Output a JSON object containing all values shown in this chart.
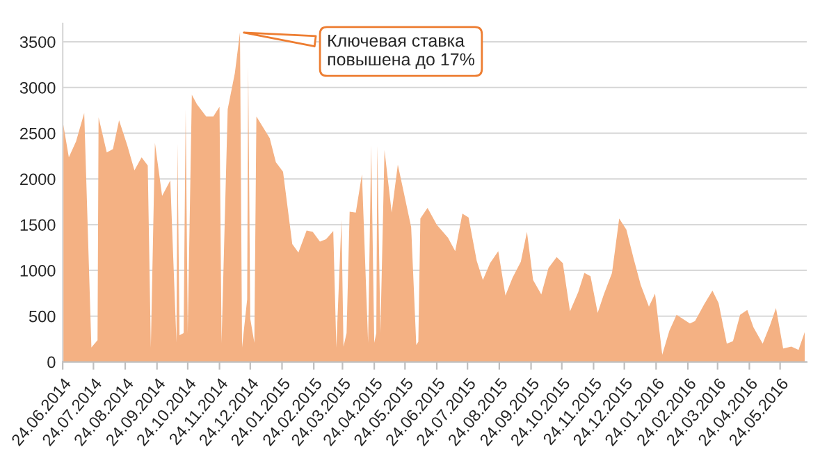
{
  "chart_data": {
    "type": "area",
    "x": [
      "2014-06-24",
      "2014-06-30",
      "2014-07-07",
      "2014-07-15",
      "2014-07-22",
      "2014-07-28",
      "2014-07-29",
      "2014-08-06",
      "2014-08-12",
      "2014-08-18",
      "2014-08-26",
      "2014-09-02",
      "2014-09-09",
      "2014-09-15",
      "2014-09-18",
      "2014-09-22",
      "2014-09-29",
      "2014-10-07",
      "2014-10-13",
      "2014-10-14",
      "2014-10-16",
      "2014-10-20",
      "2014-10-22",
      "2014-10-24",
      "2014-10-28",
      "2014-11-02",
      "2014-11-11",
      "2014-11-18",
      "2014-11-24",
      "2014-11-26",
      "2014-12-02",
      "2014-12-09",
      "2014-12-14",
      "2014-12-16",
      "2014-12-21",
      "2014-12-22",
      "2014-12-24",
      "2014-12-28",
      "2014-12-30",
      "2015-01-12",
      "2015-01-18",
      "2015-01-25",
      "2015-02-03",
      "2015-02-09",
      "2015-02-17",
      "2015-02-23",
      "2015-03-02",
      "2015-03-08",
      "2015-03-15",
      "2015-03-18",
      "2015-03-23",
      "2015-03-25",
      "2015-03-28",
      "2015-03-31",
      "2015-04-06",
      "2015-04-12",
      "2015-04-18",
      "2015-04-21",
      "2015-04-24",
      "2015-04-26",
      "2015-04-27",
      "2015-04-30",
      "2015-05-04",
      "2015-05-11",
      "2015-05-17",
      "2015-05-30",
      "2015-06-04",
      "2015-06-06",
      "2015-06-08",
      "2015-06-15",
      "2015-06-24",
      "2015-07-05",
      "2015-07-12",
      "2015-07-19",
      "2015-07-25",
      "2015-08-02",
      "2015-08-08",
      "2015-08-15",
      "2015-08-23",
      "2015-08-30",
      "2015-09-06",
      "2015-09-14",
      "2015-09-20",
      "2015-09-26",
      "2015-10-04",
      "2015-10-11",
      "2015-10-19",
      "2015-10-25",
      "2015-11-01",
      "2015-11-09",
      "2015-11-15",
      "2015-11-21",
      "2015-11-28",
      "2015-12-04",
      "2015-12-12",
      "2015-12-19",
      "2015-12-26",
      "2016-01-02",
      "2016-01-09",
      "2016-01-17",
      "2016-01-23",
      "2016-01-30",
      "2016-02-06",
      "2016-02-13",
      "2016-02-20",
      "2016-02-26",
      "2016-03-02",
      "2016-03-11",
      "2016-03-19",
      "2016-03-25",
      "2016-04-02",
      "2016-04-08",
      "2016-04-15",
      "2016-04-22",
      "2016-04-28",
      "2016-05-07",
      "2016-05-14",
      "2016-05-20",
      "2016-05-27",
      "2016-06-04",
      "2016-06-11",
      "2016-06-17"
    ],
    "series": [
      {
        "color": "#f4b183",
        "values": [
          2632,
          2237,
          2410,
          2721,
          158,
          237,
          2674,
          2290,
          2326,
          2642,
          2368,
          2095,
          2237,
          2147,
          158,
          2395,
          1816,
          1984,
          210,
          2395,
          290,
          316,
          2763,
          316,
          2921,
          2816,
          2684,
          2684,
          2790,
          210,
          2763,
          3158,
          3605,
          158,
          684,
          3237,
          474,
          210,
          2684,
          2447,
          2184,
          2079,
          1289,
          1195,
          1437,
          1421,
          1316,
          1342,
          1431,
          158,
          1553,
          168,
          316,
          1642,
          1632,
          2053,
          210,
          2368,
          210,
          316,
          2368,
          316,
          2316,
          1632,
          2158,
          1474,
          184,
          221,
          1568,
          1684,
          1500,
          1358,
          1210,
          1621,
          1579,
          1105,
          895,
          1079,
          1210,
          726,
          921,
          1095,
          1421,
          895,
          737,
          1026,
          1147,
          1079,
          553,
          763,
          974,
          937,
          537,
          737,
          974,
          1568,
          1447,
          1132,
          842,
          605,
          747,
          79,
          342,
          516,
          463,
          421,
          447,
          632,
          779,
          642,
          200,
          226,
          516,
          568,
          379,
          200,
          395,
          589,
          147,
          168,
          132,
          326
        ]
      }
    ],
    "xlim": [
      "2014-06-24",
      "2016-06-19"
    ],
    "ylim": [
      0,
      3700
    ],
    "yticks": [
      0,
      500,
      1000,
      1500,
      2000,
      2500,
      3000,
      3500
    ],
    "xticks": [
      {
        "value": "2014-06-24",
        "label": "24.06.2014"
      },
      {
        "value": "2014-07-24",
        "label": "24.07.2014"
      },
      {
        "value": "2014-08-24",
        "label": "24.08.2014"
      },
      {
        "value": "2014-09-24",
        "label": "24.09.2014"
      },
      {
        "value": "2014-10-24",
        "label": "24.10.2014"
      },
      {
        "value": "2014-11-24",
        "label": "24.11.2014"
      },
      {
        "value": "2014-12-24",
        "label": "24.12.2014"
      },
      {
        "value": "2015-01-24",
        "label": "24.01.2015"
      },
      {
        "value": "2015-02-24",
        "label": "24.02.2015"
      },
      {
        "value": "2015-03-24",
        "label": "24.03.2015"
      },
      {
        "value": "2015-04-24",
        "label": "24.04.2015"
      },
      {
        "value": "2015-05-24",
        "label": "24.05.2015"
      },
      {
        "value": "2015-06-24",
        "label": "24.06.2015"
      },
      {
        "value": "2015-07-24",
        "label": "24.07.2015"
      },
      {
        "value": "2015-08-24",
        "label": "24.08.2015"
      },
      {
        "value": "2015-09-24",
        "label": "24.09.2015"
      },
      {
        "value": "2015-10-24",
        "label": "24.10.2015"
      },
      {
        "value": "2015-11-24",
        "label": "24.11.2015"
      },
      {
        "value": "2015-12-24",
        "label": "24.12.2015"
      },
      {
        "value": "2016-01-24",
        "label": "24.01.2016"
      },
      {
        "value": "2016-02-24",
        "label": "24.02.2016"
      },
      {
        "value": "2016-03-24",
        "label": "24.03.2016"
      },
      {
        "value": "2016-04-24",
        "label": "24.04.2016"
      },
      {
        "value": "2016-05-24",
        "label": "24.05.2016"
      }
    ],
    "grid": "y",
    "annotations": [
      {
        "text": "Ключевая ставка\nповышена до 17%",
        "x": "2014-12-14",
        "y": 3605
      }
    ]
  }
}
